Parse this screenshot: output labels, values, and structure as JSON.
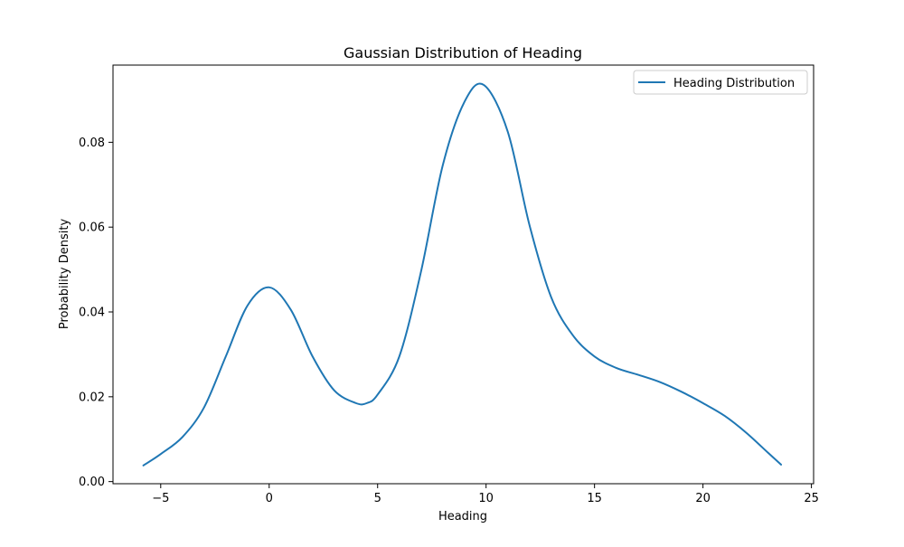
{
  "chart_data": {
    "type": "line",
    "title": "Gaussian Distribution of Heading",
    "xlabel": "Heading",
    "ylabel": "Probability Density",
    "xlim": [
      -7.2,
      25.1
    ],
    "ylim": [
      -0.0005,
      0.0982
    ],
    "xticks": [
      -5,
      0,
      5,
      10,
      15,
      20,
      25
    ],
    "xtick_labels": [
      "−5",
      "0",
      "5",
      "10",
      "15",
      "20",
      "25"
    ],
    "yticks": [
      0.0,
      0.02,
      0.04,
      0.06,
      0.08
    ],
    "ytick_labels": [
      "0.00",
      "0.02",
      "0.04",
      "0.06",
      "0.08"
    ],
    "grid": false,
    "legend_position": "top-right",
    "series": [
      {
        "name": "Heading Distribution",
        "color": "#1f77b4",
        "x": [
          -5.8,
          -5.0,
          -4.0,
          -3.0,
          -2.0,
          -1.0,
          0.0,
          1.0,
          2.0,
          3.0,
          4.0,
          4.5,
          5.0,
          6.0,
          7.0,
          8.0,
          9.0,
          9.9,
          11.0,
          12.0,
          13.0,
          14.0,
          15.0,
          16.0,
          17.0,
          18.0,
          19.0,
          20.0,
          21.0,
          22.0,
          23.0,
          23.6
        ],
        "y": [
          0.0038,
          0.0065,
          0.0105,
          0.0175,
          0.0295,
          0.0415,
          0.0458,
          0.0405,
          0.0295,
          0.0215,
          0.0185,
          0.0185,
          0.0205,
          0.0295,
          0.0495,
          0.0745,
          0.0895,
          0.0935,
          0.0825,
          0.0605,
          0.0435,
          0.0345,
          0.0295,
          0.0268,
          0.0252,
          0.0235,
          0.0212,
          0.0185,
          0.0155,
          0.0115,
          0.0068,
          0.004
        ]
      }
    ]
  }
}
